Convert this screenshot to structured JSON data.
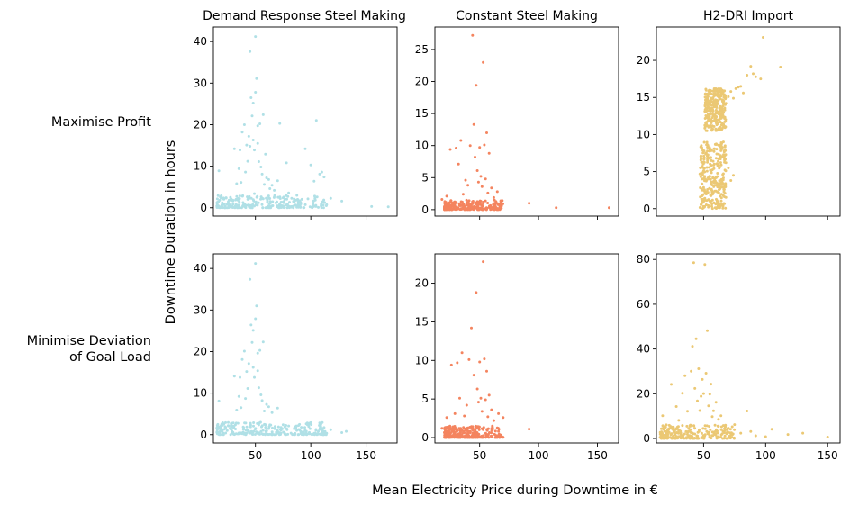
{
  "figure": {
    "xlabel": "Mean Electricity Price during Downtime in €",
    "ylabel": "Downtime Duration in hours",
    "column_titles": [
      "Demand Response Steel Making",
      "Constant Steel Making",
      "H2-DRI Import"
    ],
    "row_labels": [
      "Maximise Profit",
      "Minimise Deviation of Goal Load"
    ],
    "row_label_lines": [
      [
        "Maximise Profit"
      ],
      [
        "Minimise Deviation",
        "of Goal Load"
      ]
    ],
    "colors": [
      "#b0e0e6",
      "#f4845f",
      "#ebc874"
    ],
    "marker_size": 1.5
  },
  "chart_data": [
    {
      "type": "scatter",
      "row": 0,
      "col": 0,
      "title": "Demand Response Steel Making",
      "xlim": [
        12,
        178
      ],
      "ylim": [
        -2,
        43.5
      ],
      "x_ticks": [
        50,
        100,
        150
      ],
      "y_ticks": [
        0,
        10,
        20,
        30,
        40
      ],
      "x_tick_labels_shown": false,
      "points": [
        [
          17,
          8.9
        ],
        [
          20,
          1.2
        ],
        [
          24,
          0.8
        ],
        [
          28,
          2.1
        ],
        [
          31,
          14.2
        ],
        [
          33,
          5.8
        ],
        [
          35,
          9.4
        ],
        [
          36,
          13.9
        ],
        [
          37,
          6.1
        ],
        [
          38,
          18.2
        ],
        [
          40,
          20
        ],
        [
          41,
          8.6
        ],
        [
          42,
          15.1
        ],
        [
          43,
          11.2
        ],
        [
          44,
          17.2
        ],
        [
          45,
          14.8
        ],
        [
          45,
          37.6
        ],
        [
          46,
          26.5
        ],
        [
          47,
          22.1
        ],
        [
          48,
          16.3
        ],
        [
          48,
          25.2
        ],
        [
          49,
          13.9
        ],
        [
          49,
          3.4
        ],
        [
          50,
          41.2
        ],
        [
          50,
          27.8
        ],
        [
          51,
          31.1
        ],
        [
          52,
          19.7
        ],
        [
          52,
          15.5
        ],
        [
          53,
          11.1
        ],
        [
          54,
          20.2
        ],
        [
          55,
          9.8
        ],
        [
          56,
          8.1
        ],
        [
          57,
          22.4
        ],
        [
          58,
          5.6
        ],
        [
          59,
          12.9
        ],
        [
          60,
          7.2
        ],
        [
          62,
          6.8
        ],
        [
          63,
          4.6
        ],
        [
          65,
          5.4
        ],
        [
          67,
          4.2
        ],
        [
          70,
          6.5
        ],
        [
          72,
          20.3
        ],
        [
          75,
          2.4
        ],
        [
          78,
          10.8
        ],
        [
          80,
          3.6
        ],
        [
          85,
          2.1
        ],
        [
          90,
          1.7
        ],
        [
          95,
          14.2
        ],
        [
          100,
          10.3
        ],
        [
          103,
          6.4
        ],
        [
          105,
          21
        ],
        [
          108,
          8.1
        ],
        [
          110,
          8.6
        ],
        [
          112,
          7.4
        ],
        [
          118,
          2.3
        ],
        [
          128,
          1.6
        ],
        [
          155,
          0.3
        ],
        [
          170,
          0.2
        ]
      ],
      "dense_band": {
        "x": [
          15,
          115
        ],
        "y": [
          0,
          3
        ]
      }
    },
    {
      "type": "scatter",
      "row": 0,
      "col": 1,
      "title": "Constant Steel Making",
      "xlim": [
        12,
        168
      ],
      "ylim": [
        -1,
        28.5
      ],
      "x_ticks": [
        50,
        100,
        150
      ],
      "y_ticks": [
        0,
        5,
        10,
        15,
        20,
        25
      ],
      "x_tick_labels_shown": false,
      "points": [
        [
          18,
          1.6
        ],
        [
          22,
          2.1
        ],
        [
          25,
          9.4
        ],
        [
          27,
          0.8
        ],
        [
          30,
          9.6
        ],
        [
          32,
          7.1
        ],
        [
          34,
          10.8
        ],
        [
          36,
          2.4
        ],
        [
          38,
          4.6
        ],
        [
          40,
          3.8
        ],
        [
          42,
          10
        ],
        [
          44,
          27.2
        ],
        [
          45,
          13.3
        ],
        [
          46,
          8.2
        ],
        [
          47,
          19.4
        ],
        [
          48,
          6.1
        ],
        [
          49,
          4.3
        ],
        [
          50,
          9.7
        ],
        [
          51,
          5.2
        ],
        [
          52,
          3.6
        ],
        [
          53,
          23
        ],
        [
          54,
          10.1
        ],
        [
          55,
          4.8
        ],
        [
          56,
          12
        ],
        [
          57,
          2.6
        ],
        [
          58,
          8.8
        ],
        [
          60,
          3.4
        ],
        [
          62,
          1.9
        ],
        [
          65,
          2.8
        ],
        [
          68,
          1.3
        ],
        [
          92,
          1
        ],
        [
          115,
          0.3
        ],
        [
          160,
          0.3
        ]
      ],
      "dense_band": {
        "x": [
          20,
          70
        ],
        "y": [
          0,
          1.5
        ]
      }
    },
    {
      "type": "scatter",
      "row": 0,
      "col": 2,
      "title": "H2-DRI Import",
      "xlim": [
        12,
        160
      ],
      "ylim": [
        -1,
        24.5
      ],
      "x_ticks": [
        50,
        100,
        150
      ],
      "y_ticks": [
        0,
        5,
        10,
        15,
        20
      ],
      "x_tick_labels_shown": false,
      "points": [
        [
          68,
          14.2
        ],
        [
          70,
          15.1
        ],
        [
          72,
          15.8
        ],
        [
          74,
          14.9
        ],
        [
          76,
          16.2
        ],
        [
          78,
          16.4
        ],
        [
          80,
          16.5
        ],
        [
          82,
          15.6
        ],
        [
          85,
          18
        ],
        [
          88,
          19.2
        ],
        [
          90,
          18.2
        ],
        [
          92,
          17.8
        ],
        [
          96,
          17.5
        ],
        [
          98,
          23.1
        ],
        [
          112,
          19.1
        ],
        [
          66,
          9
        ],
        [
          68,
          6.2
        ],
        [
          70,
          5.5
        ],
        [
          72,
          3.8
        ],
        [
          74,
          4.5
        ]
      ],
      "clusters": [
        {
          "x": [
            47,
            68
          ],
          "y": [
            0,
            9
          ]
        },
        {
          "x": [
            51,
            68
          ],
          "y": [
            10.5,
            16.2
          ]
        }
      ]
    },
    {
      "type": "scatter",
      "row": 1,
      "col": 0,
      "xlim": [
        12,
        178
      ],
      "ylim": [
        -2,
        43.5
      ],
      "x_ticks": [
        50,
        100,
        150
      ],
      "y_ticks": [
        0,
        10,
        20,
        30,
        40
      ],
      "x_tick_labels_shown": true,
      "points": [
        [
          17,
          8.1
        ],
        [
          22,
          1.3
        ],
        [
          28,
          2.6
        ],
        [
          31,
          14.1
        ],
        [
          33,
          5.9
        ],
        [
          35,
          9.2
        ],
        [
          36,
          13.8
        ],
        [
          37,
          6.5
        ],
        [
          38,
          18.1
        ],
        [
          40,
          20.1
        ],
        [
          41,
          8.7
        ],
        [
          42,
          15.2
        ],
        [
          43,
          11.1
        ],
        [
          44,
          17.1
        ],
        [
          45,
          37.4
        ],
        [
          46,
          26.4
        ],
        [
          47,
          22.2
        ],
        [
          48,
          16.2
        ],
        [
          48,
          25.1
        ],
        [
          49,
          13.8
        ],
        [
          50,
          41.2
        ],
        [
          50,
          27.9
        ],
        [
          51,
          31
        ],
        [
          52,
          19.6
        ],
        [
          52,
          15.4
        ],
        [
          53,
          11.3
        ],
        [
          54,
          20.3
        ],
        [
          55,
          9.6
        ],
        [
          56,
          8.2
        ],
        [
          57,
          22.3
        ],
        [
          58,
          5.7
        ],
        [
          60,
          7.3
        ],
        [
          62,
          6.7
        ],
        [
          65,
          5.3
        ],
        [
          70,
          6.4
        ],
        [
          75,
          2.4
        ],
        [
          80,
          2.1
        ],
        [
          85,
          1.4
        ],
        [
          90,
          1.1
        ],
        [
          100,
          2.9
        ],
        [
          110,
          1.5
        ],
        [
          118,
          1.2
        ],
        [
          128,
          0.5
        ],
        [
          132,
          0.8
        ]
      ],
      "dense_band": {
        "x": [
          15,
          115
        ],
        "y": [
          0,
          3
        ]
      }
    },
    {
      "type": "scatter",
      "row": 1,
      "col": 1,
      "xlim": [
        12,
        168
      ],
      "ylim": [
        -0.7,
        23.8
      ],
      "x_ticks": [
        50,
        100,
        150
      ],
      "y_ticks": [
        0,
        5,
        10,
        15,
        20
      ],
      "x_tick_labels_shown": true,
      "points": [
        [
          18,
          1.2
        ],
        [
          22,
          2.6
        ],
        [
          26,
          9.4
        ],
        [
          29,
          3.1
        ],
        [
          31,
          9.7
        ],
        [
          33,
          5.1
        ],
        [
          35,
          11
        ],
        [
          37,
          2.8
        ],
        [
          39,
          4.2
        ],
        [
          41,
          10.1
        ],
        [
          43,
          14.2
        ],
        [
          45,
          8.1
        ],
        [
          47,
          18.8
        ],
        [
          48,
          6.3
        ],
        [
          49,
          4.6
        ],
        [
          50,
          9.8
        ],
        [
          51,
          5.1
        ],
        [
          52,
          3.4
        ],
        [
          53,
          22.8
        ],
        [
          54,
          10.2
        ],
        [
          55,
          4.9
        ],
        [
          56,
          8.6
        ],
        [
          57,
          2.7
        ],
        [
          58,
          5.5
        ],
        [
          60,
          3.6
        ],
        [
          62,
          2.2
        ],
        [
          66,
          3.1
        ],
        [
          70,
          2.6
        ],
        [
          92,
          1.1
        ]
      ],
      "dense_band": {
        "x": [
          20,
          70
        ],
        "y": [
          0,
          1.5
        ]
      }
    },
    {
      "type": "scatter",
      "row": 1,
      "col": 2,
      "xlim": [
        12,
        160
      ],
      "ylim": [
        -2,
        82.5
      ],
      "x_ticks": [
        50,
        100,
        150
      ],
      "y_ticks": [
        0,
        20,
        40,
        60,
        80
      ],
      "x_tick_labels_shown": true,
      "points": [
        [
          17,
          10.2
        ],
        [
          20,
          6.1
        ],
        [
          24,
          24.2
        ],
        [
          28,
          14.3
        ],
        [
          30,
          8.1
        ],
        [
          33,
          20.2
        ],
        [
          35,
          28.1
        ],
        [
          37,
          12.2
        ],
        [
          38,
          4.5
        ],
        [
          40,
          30.1
        ],
        [
          41,
          41.2
        ],
        [
          42,
          78.6
        ],
        [
          43,
          22.4
        ],
        [
          44,
          44.6
        ],
        [
          45,
          16.8
        ],
        [
          46,
          31.2
        ],
        [
          47,
          12.5
        ],
        [
          48,
          18.9
        ],
        [
          49,
          26.4
        ],
        [
          50,
          20.1
        ],
        [
          51,
          77.8
        ],
        [
          52,
          29.2
        ],
        [
          53,
          48.2
        ],
        [
          54,
          14.6
        ],
        [
          55,
          19.8
        ],
        [
          56,
          24.3
        ],
        [
          57,
          9.8
        ],
        [
          58,
          12.4
        ],
        [
          60,
          16.2
        ],
        [
          62,
          8.6
        ],
        [
          64,
          10.2
        ],
        [
          66,
          5.8
        ],
        [
          70,
          4.6
        ],
        [
          75,
          6.2
        ],
        [
          80,
          2.4
        ],
        [
          85,
          12.3
        ],
        [
          88,
          3.1
        ],
        [
          92,
          1.2
        ],
        [
          100,
          0.8
        ],
        [
          105,
          4.1
        ],
        [
          118,
          1.8
        ],
        [
          130,
          2.4
        ],
        [
          150,
          0.6
        ]
      ],
      "dense_band": {
        "x": [
          15,
          75
        ],
        "y": [
          0,
          6
        ]
      }
    }
  ]
}
